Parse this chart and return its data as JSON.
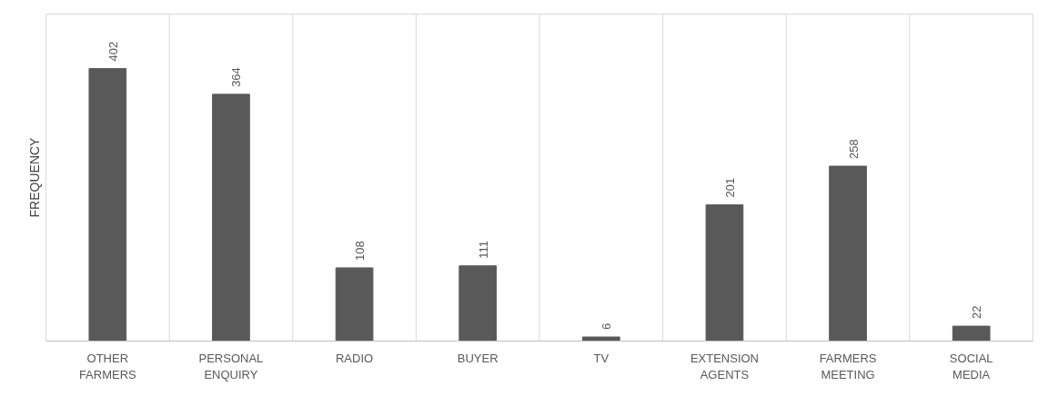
{
  "chart_data": {
    "type": "bar",
    "ylabel": "FREQUENCY",
    "categories": [
      "OTHER FARMERS",
      "PERSONAL ENQUIRY",
      "RADIO",
      "BUYER",
      "TV",
      "EXTENSION AGENTS",
      "FARMERS MEETING",
      "SOCIAL MEDIA"
    ],
    "values": [
      402,
      364,
      108,
      111,
      6,
      201,
      258,
      22
    ],
    "color": "#595959",
    "data_labels": true,
    "relative": false,
    "grid": "x"
  }
}
